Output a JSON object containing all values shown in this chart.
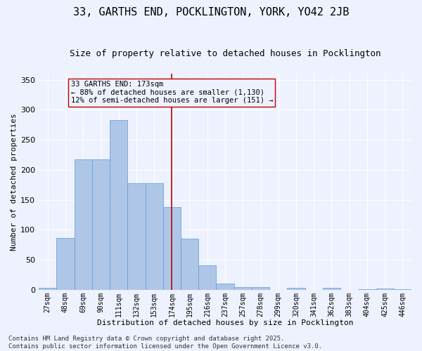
{
  "title1": "33, GARTHS END, POCKLINGTON, YORK, YO42 2JB",
  "title2": "Size of property relative to detached houses in Pocklington",
  "xlabel": "Distribution of detached houses by size in Pocklington",
  "ylabel": "Number of detached properties",
  "categories": [
    "27sqm",
    "48sqm",
    "69sqm",
    "90sqm",
    "111sqm",
    "132sqm",
    "153sqm",
    "174sqm",
    "195sqm",
    "216sqm",
    "237sqm",
    "257sqm",
    "278sqm",
    "299sqm",
    "320sqm",
    "341sqm",
    "362sqm",
    "383sqm",
    "404sqm",
    "425sqm",
    "446sqm"
  ],
  "values": [
    3,
    86,
    217,
    217,
    283,
    177,
    177,
    138,
    85,
    41,
    10,
    4,
    4,
    0,
    3,
    0,
    3,
    0,
    1,
    2,
    1
  ],
  "bar_color": "#aec6e8",
  "bar_edgecolor": "#5b9bd5",
  "vline_x": 7,
  "vline_color": "#c00000",
  "annotation_text": "33 GARTHS END: 173sqm\n← 88% of detached houses are smaller (1,130)\n12% of semi-detached houses are larger (151) →",
  "annotation_box_edgecolor": "#c00000",
  "ylim": [
    0,
    360
  ],
  "yticks": [
    0,
    50,
    100,
    150,
    200,
    250,
    300,
    350
  ],
  "footer_text": "Contains HM Land Registry data © Crown copyright and database right 2025.\nContains public sector information licensed under the Open Government Licence v3.0.",
  "background_color": "#eef2ff",
  "grid_color": "#ffffff",
  "title1_fontsize": 11,
  "title2_fontsize": 9,
  "xlabel_fontsize": 8,
  "ylabel_fontsize": 8,
  "tick_fontsize": 7,
  "annotation_fontsize": 7.5,
  "footer_fontsize": 6.5
}
